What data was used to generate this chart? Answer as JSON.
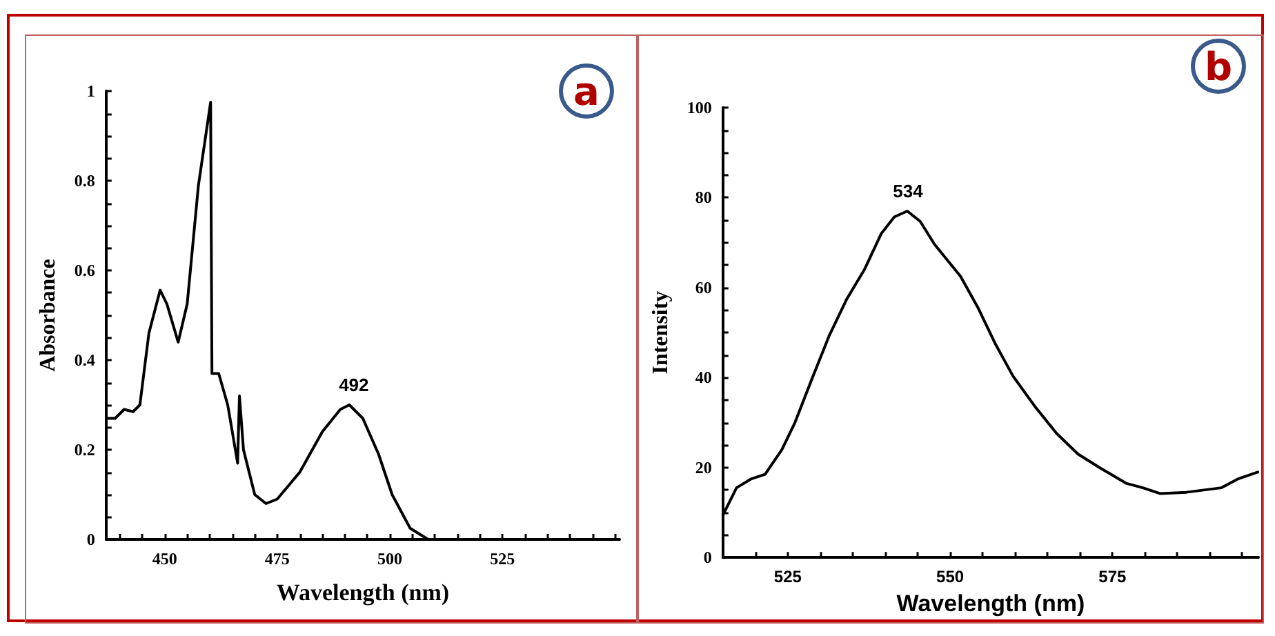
{
  "chart_data": [
    {
      "type": "line",
      "xlabel": "Wavelength (nm)",
      "ylabel": "Absorbance",
      "annotations": [
        "a",
        {
          "text": "492",
          "x": 492,
          "y": 0.3
        }
      ],
      "marker": "none",
      "line_style": "solid",
      "xlim": [
        437,
        551
      ],
      "ylim": [
        0,
        1
      ],
      "xticks": [
        {
          "value": 440,
          "label": null
        },
        {
          "value": 445,
          "label": null
        },
        450,
        {
          "value": 455,
          "label": null
        },
        {
          "value": 460,
          "label": null
        },
        {
          "value": 465,
          "label": null
        },
        {
          "value": 470,
          "label": null
        },
        475,
        {
          "value": 480,
          "label": null
        },
        {
          "value": 485,
          "label": null
        },
        {
          "value": 490,
          "label": null
        },
        {
          "value": 495,
          "label": null
        },
        500,
        {
          "value": 505,
          "label": null
        },
        {
          "value": 510,
          "label": null
        },
        {
          "value": 515,
          "label": null
        },
        {
          "value": 520,
          "label": null
        },
        525,
        {
          "value": 530,
          "label": null
        },
        {
          "value": 535,
          "label": null
        },
        {
          "value": 540,
          "label": null
        },
        {
          "value": 545,
          "label": null
        },
        {
          "value": 550,
          "label": null
        }
      ],
      "yticks": [
        0,
        {
          "value": 0.05,
          "label": null
        },
        {
          "value": 0.1,
          "label": null
        },
        {
          "value": 0.15,
          "label": null
        },
        0.2,
        {
          "value": 0.25,
          "label": null
        },
        {
          "value": 0.3,
          "label": null
        },
        {
          "value": 0.35,
          "label": null
        },
        0.4,
        {
          "value": 0.45,
          "label": null
        },
        {
          "value": 0.5,
          "label": null
        },
        {
          "value": 0.55,
          "label": null
        },
        0.6,
        {
          "value": 0.65,
          "label": null
        },
        {
          "value": 0.7,
          "label": null
        },
        {
          "value": 0.75,
          "label": null
        },
        0.8,
        {
          "value": 0.85,
          "label": null
        },
        {
          "value": 0.9,
          "label": null
        },
        {
          "value": 0.95,
          "label": null
        },
        1
      ],
      "series": [
        {
          "color": "#000000",
          "x": [
            437.5,
            439,
            441,
            443,
            444.5,
            446.5,
            449,
            450.5,
            453,
            455,
            457.5,
            460.2,
            460.5,
            462,
            464,
            466.2,
            466.6,
            467.5,
            470,
            472.5,
            475,
            480,
            485,
            489,
            491,
            494,
            497.5,
            500.5,
            504.5,
            508.5
          ],
          "values": [
            0.27,
            0.27,
            0.29,
            0.285,
            0.3,
            0.46,
            0.556,
            0.525,
            0.44,
            0.525,
            0.79,
            0.975,
            0.37,
            0.37,
            0.3,
            0.17,
            0.32,
            0.2,
            0.1,
            0.08,
            0.09,
            0.15,
            0.24,
            0.29,
            0.3,
            0.27,
            0.19,
            0.1,
            0.025,
            0
          ]
        }
      ]
    },
    {
      "type": "line",
      "xlabel": "Wavelength (nm)",
      "ylabel": "Intensity",
      "annotations": [
        "b",
        {
          "text": "534",
          "x": 543.5,
          "y": 77
        }
      ],
      "marker": "none",
      "line_style": "solid",
      "xlim": [
        515,
        597.5
      ],
      "ylim": [
        0,
        100
      ],
      "xticks": [
        {
          "value": 515,
          "label": null
        },
        {
          "value": 520,
          "label": null
        },
        525,
        {
          "value": 530,
          "label": null
        },
        {
          "value": 535,
          "label": null
        },
        {
          "value": 540,
          "label": null
        },
        {
          "value": 545,
          "label": null
        },
        550,
        {
          "value": 555,
          "label": null
        },
        {
          "value": 560,
          "label": null
        },
        {
          "value": 565,
          "label": null
        },
        {
          "value": 570,
          "label": null
        },
        575,
        {
          "value": 580,
          "label": null
        },
        {
          "value": 585,
          "label": null
        },
        {
          "value": 590,
          "label": null
        },
        {
          "value": 595,
          "label": null
        }
      ],
      "yticks": [
        0,
        {
          "value": 5,
          "label": null
        },
        {
          "value": 10,
          "label": null
        },
        {
          "value": 15,
          "label": null
        },
        20,
        {
          "value": 25,
          "label": null
        },
        {
          "value": 30,
          "label": null
        },
        {
          "value": 35,
          "label": null
        },
        40,
        {
          "value": 45,
          "label": null
        },
        {
          "value": 50,
          "label": null
        },
        {
          "value": 55,
          "label": null
        },
        60,
        {
          "value": 65,
          "label": null
        },
        {
          "value": 70,
          "label": null
        },
        {
          "value": 75,
          "label": null
        },
        80,
        {
          "value": 85,
          "label": null
        },
        {
          "value": 90,
          "label": null
        },
        {
          "value": 95,
          "label": null
        },
        100
      ],
      "series": [
        {
          "color": "#000000",
          "x": [
            515,
            517.1,
            519.4,
            521.5,
            524.1,
            526.1,
            528.8,
            531.4,
            534.1,
            536.8,
            539.4,
            541.4,
            543.4,
            545.4,
            547.6,
            551.6,
            554.3,
            557,
            559.7,
            563,
            566.4,
            569.7,
            573,
            577.1,
            579.7,
            582.4,
            586.4,
            591.8,
            594.4,
            597.4
          ],
          "values": [
            9.4,
            15.5,
            17.5,
            18.5,
            24,
            30,
            40,
            49.4,
            57.5,
            64,
            72,
            75.7,
            77,
            74.7,
            69.6,
            62.5,
            55.5,
            47.4,
            40.3,
            33.7,
            27.6,
            23,
            20,
            16.5,
            15.5,
            14.2,
            14.5,
            15.5,
            17.5,
            19
          ]
        }
      ]
    }
  ]
}
